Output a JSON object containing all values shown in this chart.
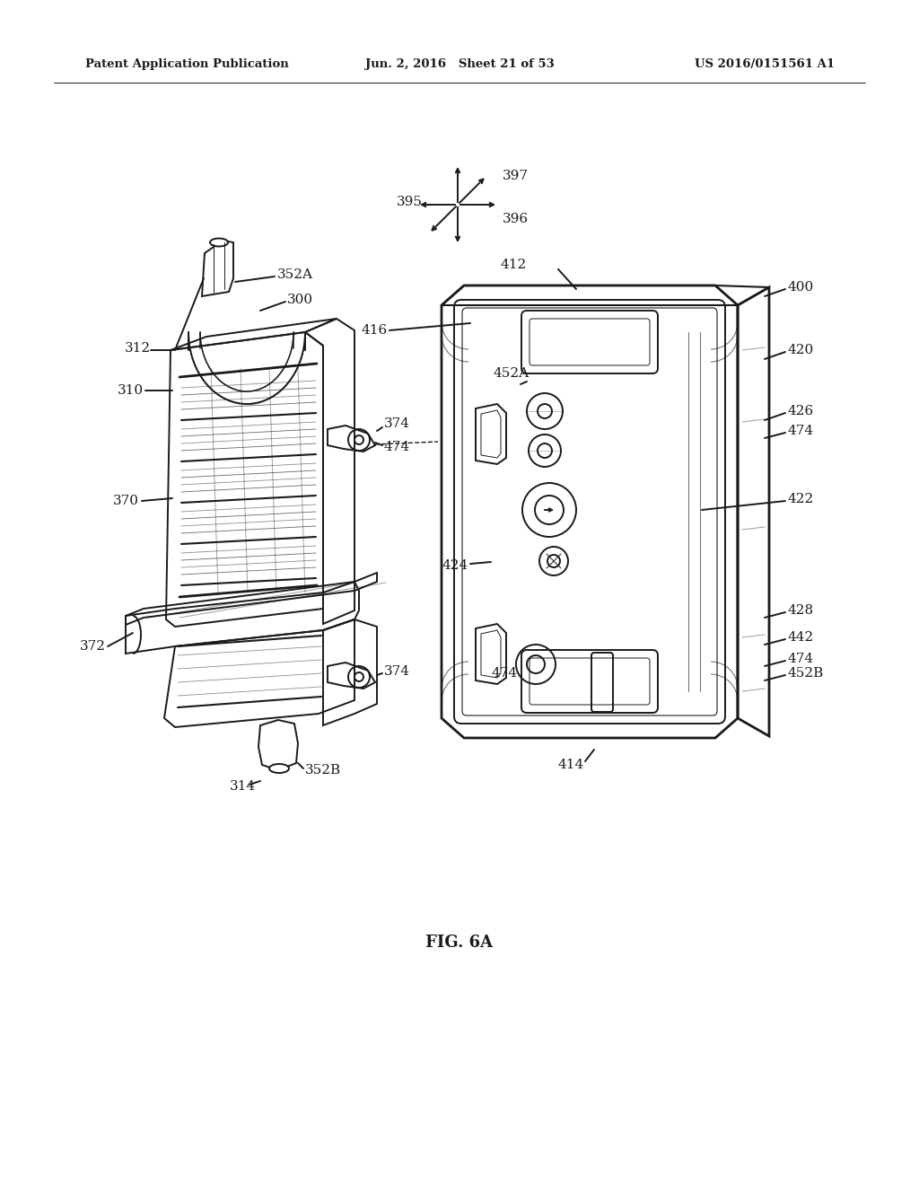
{
  "bg_color": "#ffffff",
  "header_left": "Patent Application Publication",
  "header_mid": "Jun. 2, 2016   Sheet 21 of 53",
  "header_right": "US 2016/0151561 A1",
  "fig_label": "FIG. 6A",
  "lc": "#1a1a1a",
  "figsize": [
    10.24,
    13.2
  ],
  "dpi": 100
}
